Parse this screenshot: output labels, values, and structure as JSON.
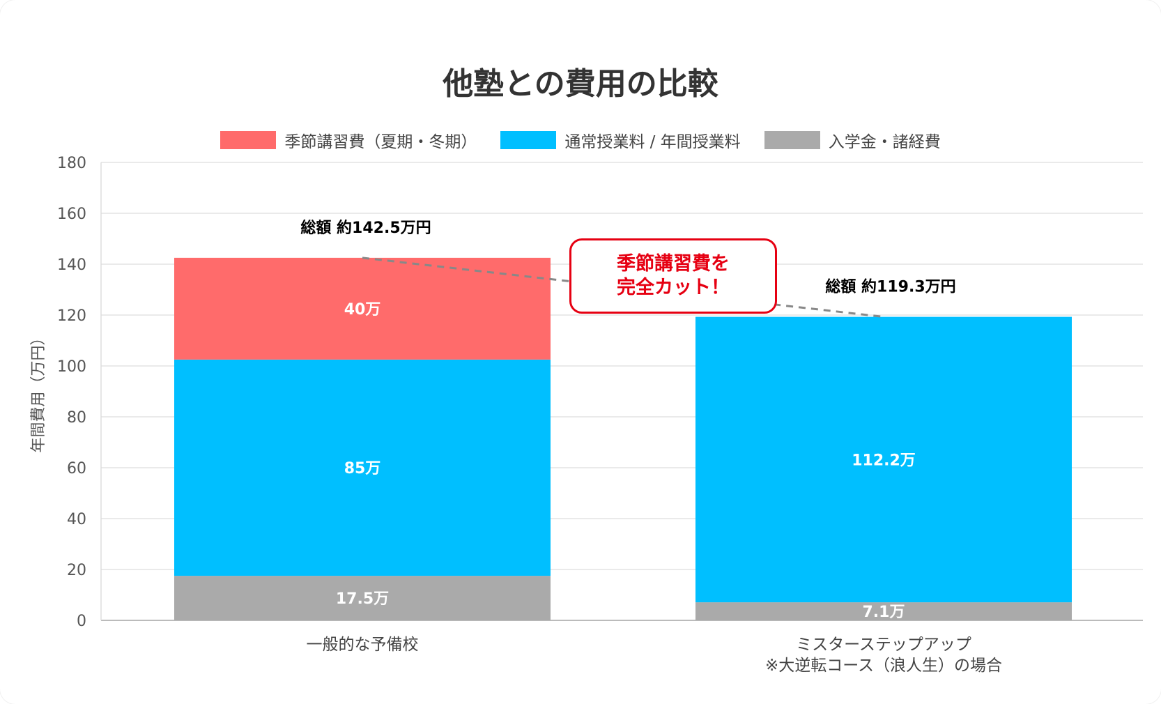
{
  "chart_data": {
    "type": "bar",
    "stacked": true,
    "title": "他塾との費用の比較",
    "ylabel": "年間費用（万円）",
    "xlabel": "",
    "ylim": [
      0,
      180
    ],
    "yticks": [
      0,
      20,
      40,
      60,
      80,
      100,
      120,
      140,
      160,
      180
    ],
    "grid": true,
    "legend_position": "top-center",
    "categories": [
      [
        "一般的な予備校"
      ],
      [
        "ミスターステップアップ",
        "※大逆転コース（浪人生）の場合"
      ]
    ],
    "series": [
      {
        "name": "入学金・諸経費",
        "color": "#aaaaaa",
        "values": [
          17.5,
          7.1
        ],
        "labels": [
          "17.5万",
          "7.1万"
        ]
      },
      {
        "name": "通常授業料 / 年間授業料",
        "color": "#00bfff",
        "values": [
          85,
          112.2
        ],
        "labels": [
          "85万",
          "112.2万"
        ]
      },
      {
        "name": "季節講習費（夏期・冬期）",
        "color": "#ff6b6b",
        "values": [
          40,
          0
        ],
        "labels": [
          "40万",
          ""
        ]
      }
    ],
    "legend_order": [
      2,
      1,
      0
    ],
    "totals": [
      "総額 約142.5万円",
      "総額 約119.3万円"
    ],
    "annotation": [
      "季節講習費を",
      "完全カット！"
    ],
    "annotation_color": "#e60012"
  }
}
